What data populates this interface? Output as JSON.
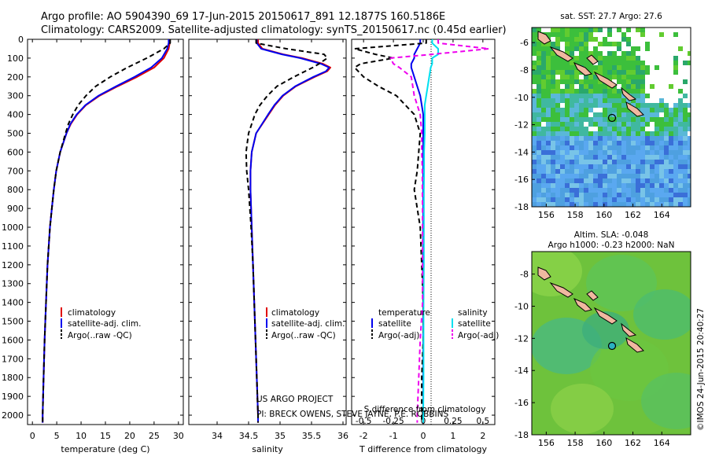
{
  "header": {
    "line1": "Argo profile: AO 5904390_69 17-Jun-2015 20150617_891 12.1877S 160.5186E",
    "line2": "Climatology: CARS2009. Satellite-adjusted climatology: synTS_20150617.nc (0.45d earlier)"
  },
  "credit": "©IMOS 24-Jun-2015 20:40:27",
  "project": {
    "line1": "US ARGO PROJECT",
    "line2": "PI: BRECK OWENS, STEVE JAYNE, P.E. ROBBINS"
  },
  "depth_ticks": [
    "0",
    "100",
    "200",
    "300",
    "400",
    "500",
    "600",
    "700",
    "800",
    "900",
    "1000",
    "1100",
    "1200",
    "1300",
    "1400",
    "1500",
    "1600",
    "1700",
    "1800",
    "1900",
    "2000"
  ],
  "colors": {
    "clim": "#e00000",
    "sat": "#0000ee",
    "argo": "#000000",
    "sat_s": "#00e0f0",
    "argo_s": "#ee00ee"
  },
  "legend": {
    "clim": "climatology",
    "sat": "satellite-adj. clim.",
    "argo": "Argo(..raw -QC)",
    "diff_temp_title": "temperature",
    "diff_sal_title": "salinity",
    "diff_sat": "satellite",
    "diff_argo": "Argo(-adj)"
  },
  "chart_data": [
    {
      "type": "line",
      "xlabel": "temperature (deg C)",
      "ylim": [
        2050,
        0
      ],
      "xlim": [
        -1,
        31
      ],
      "x_ticks": [
        "0",
        "5",
        "10",
        "15",
        "20",
        "25",
        "30"
      ],
      "y": [
        0,
        20,
        50,
        100,
        150,
        200,
        250,
        300,
        350,
        400,
        450,
        500,
        600,
        700,
        800,
        900,
        1000,
        1200,
        1400,
        1600,
        1800,
        2000,
        2040
      ],
      "series": [
        {
          "name": "climatology",
          "x": [
            28.2,
            28.2,
            28.0,
            27.0,
            25.0,
            21.5,
            17.5,
            13.8,
            11.0,
            9.2,
            7.9,
            7.0,
            5.7,
            4.9,
            4.4,
            4.0,
            3.6,
            3.1,
            2.8,
            2.5,
            2.3,
            2.1,
            2.1
          ]
        },
        {
          "name": "satellite-adj. clim.",
          "x": [
            28.0,
            28.0,
            27.7,
            26.6,
            24.4,
            21.0,
            17.2,
            13.6,
            10.9,
            9.1,
            7.8,
            7.0,
            5.7,
            4.9,
            4.4,
            4.0,
            3.6,
            3.1,
            2.8,
            2.5,
            2.3,
            2.1,
            2.1
          ]
        },
        {
          "name": "Argo(..raw -QC)",
          "x": [
            28.3,
            28.3,
            27.0,
            23.5,
            19.5,
            16.0,
            13.0,
            11.0,
            9.4,
            8.3,
            7.4,
            6.8,
            5.7,
            4.9,
            4.4,
            4.0,
            3.6,
            3.1,
            2.8,
            2.5,
            2.3,
            2.1,
            2.1
          ]
        }
      ]
    },
    {
      "type": "line",
      "xlabel": "salinity",
      "ylim": [
        2050,
        0
      ],
      "xlim": [
        33.55,
        36.05
      ],
      "x_ticks": [
        "34",
        "34.5",
        "35",
        "35.5",
        "36"
      ],
      "y": [
        0,
        20,
        50,
        80,
        100,
        130,
        150,
        170,
        200,
        250,
        300,
        350,
        400,
        500,
        600,
        700,
        800,
        900,
        1000,
        1200,
        1400,
        1600,
        1800,
        2000,
        2040
      ],
      "series": [
        {
          "name": "climatology",
          "x": [
            34.65,
            34.65,
            34.72,
            35.05,
            35.35,
            35.68,
            35.8,
            35.75,
            35.55,
            35.25,
            35.05,
            34.92,
            34.82,
            34.62,
            34.55,
            34.53,
            34.53,
            34.54,
            34.55,
            34.57,
            34.59,
            34.61,
            34.63,
            34.65,
            34.65
          ]
        },
        {
          "name": "satellite-adj. clim.",
          "x": [
            34.63,
            34.63,
            34.7,
            35.03,
            35.32,
            35.65,
            35.78,
            35.73,
            35.53,
            35.24,
            35.04,
            34.91,
            34.81,
            34.62,
            34.55,
            34.53,
            34.53,
            34.54,
            34.55,
            34.57,
            34.59,
            34.61,
            34.63,
            34.65,
            34.65
          ]
        },
        {
          "name": "Argo(..raw -QC)",
          "x": [
            34.62,
            34.62,
            35.1,
            35.7,
            35.75,
            35.62,
            35.52,
            35.4,
            35.22,
            34.95,
            34.8,
            34.68,
            34.6,
            34.5,
            34.46,
            34.47,
            34.5,
            34.52,
            34.54,
            34.57,
            34.59,
            34.61,
            34.63,
            34.65,
            34.65
          ]
        }
      ]
    },
    {
      "type": "line",
      "xlabel": "T difference from climatology",
      "secondary_xlabel": "S difference from climatology",
      "ylim": [
        2050,
        0
      ],
      "xlim": [
        -2.4,
        2.4
      ],
      "x_ticks": [
        "-2",
        "-1",
        "0",
        "1",
        "2"
      ],
      "x2_ticks": [
        "-0.5",
        "-0.25",
        "0",
        "0.25",
        "0.5"
      ],
      "y": [
        0,
        20,
        50,
        80,
        100,
        130,
        150,
        200,
        250,
        300,
        350,
        400,
        500,
        600,
        700,
        800,
        900,
        1000,
        1200,
        1400,
        1600,
        1800,
        2000,
        2040
      ],
      "series": [
        {
          "name": "satellite (temperature)",
          "x": [
            -0.1,
            -0.1,
            -0.2,
            -0.3,
            -0.3,
            -0.4,
            -0.4,
            -0.3,
            -0.2,
            -0.1,
            -0.05,
            0,
            0,
            0,
            0,
            0,
            0,
            0,
            0,
            0,
            0,
            0,
            0,
            0
          ]
        },
        {
          "name": "Argo(-adj) (temperature)",
          "x": [
            0.1,
            0.1,
            -2.3,
            -1.6,
            -1.0,
            -2.1,
            -2.3,
            -2.0,
            -1.5,
            -0.9,
            -0.6,
            -0.3,
            -0.1,
            -0.15,
            -0.2,
            -0.3,
            -0.2,
            -0.1,
            -0.05,
            0,
            0,
            -0.05,
            -0.05,
            -0.05
          ]
        },
        {
          "name": "satellite (salinity)",
          "x": [
            0.3,
            0.3,
            0.5,
            0.5,
            0.3,
            0.3,
            0.25,
            0.2,
            0.15,
            0.1,
            0.05,
            0.05,
            0.05,
            0.03,
            0.03,
            0.02,
            0.02,
            0.02,
            0.02,
            0.01,
            0.01,
            0.01,
            0.0,
            0.0
          ]
        },
        {
          "name": "Argo(-adj) (salinity)",
          "x": [
            0.5,
            0.5,
            2.2,
            0.3,
            -1.1,
            -1.0,
            -0.8,
            -0.4,
            -0.35,
            -0.3,
            -0.2,
            -0.1,
            -0.05,
            -0.05,
            -0.03,
            -0.03,
            -0.02,
            -0.02,
            -0.02,
            -0.02,
            -0.1,
            -0.15,
            -0.2,
            -0.2
          ]
        }
      ]
    }
  ],
  "maps": [
    {
      "title": "sat. SST: 27.7  Argo: 27.6",
      "x_ticks": [
        "156",
        "158",
        "160",
        "162",
        "164"
      ],
      "y_ticks": [
        "-6",
        "-8",
        "-10",
        "-12",
        "-14",
        "-16",
        "-18"
      ]
    },
    {
      "title": "Altim. SLA: -0.048",
      "subtitle": "Argo h1000: -0.23  h2000: NaN",
      "x_ticks": [
        "156",
        "158",
        "160",
        "162",
        "164"
      ],
      "y_ticks": [
        "-8",
        "-10",
        "-12",
        "-14",
        "-16",
        "-18"
      ]
    }
  ]
}
